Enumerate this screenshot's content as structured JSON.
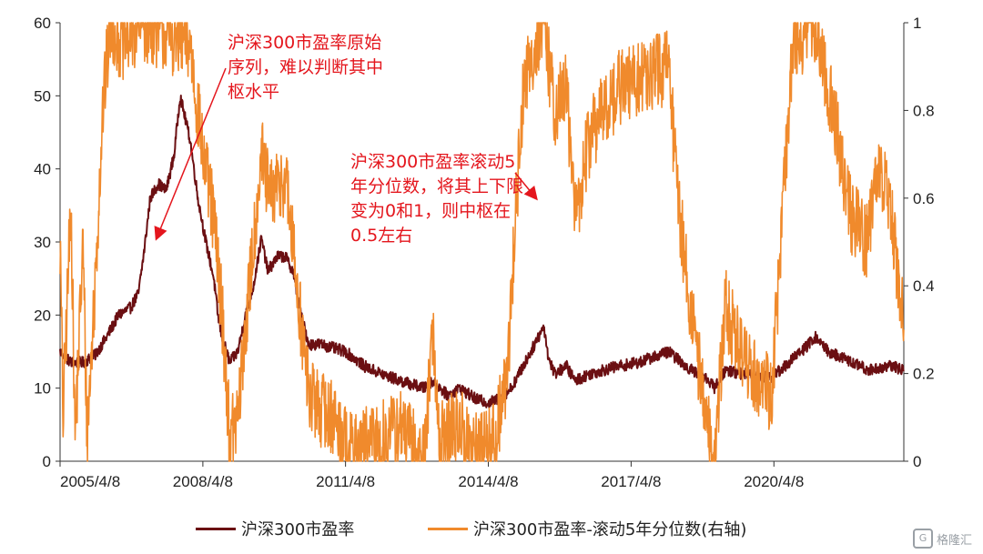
{
  "chart_data": {
    "type": "line",
    "title": "",
    "x_ticks": [
      "2005/4/8",
      "2008/4/8",
      "2011/4/8",
      "2014/4/8",
      "2017/4/8",
      "2020/4/8"
    ],
    "x_range": [
      "2005/4/8",
      "2022/12/31"
    ],
    "y_left": {
      "ticks": [
        0,
        10,
        20,
        30,
        40,
        50,
        60
      ],
      "range": [
        0,
        60
      ]
    },
    "y_right": {
      "ticks": [
        "0",
        "0.2",
        "0.4",
        "0.6",
        "0.8",
        "1"
      ],
      "range": [
        0,
        1
      ]
    },
    "grid": false,
    "legend_position": "bottom",
    "series": [
      {
        "name": "沪深300市盈率",
        "axis": "left",
        "color": "#6b0f12",
        "points": [
          [
            "2005/4/8",
            15
          ],
          [
            "2005/7/1",
            13.5
          ],
          [
            "2005/10/1",
            13.5
          ],
          [
            "2006/1/1",
            14.5
          ],
          [
            "2006/4/1",
            17
          ],
          [
            "2006/7/1",
            20
          ],
          [
            "2006/10/1",
            21
          ],
          [
            "2006/12/1",
            23
          ],
          [
            "2007/1/15",
            29
          ],
          [
            "2007/3/1",
            36
          ],
          [
            "2007/5/1",
            38
          ],
          [
            "2007/7/1",
            37
          ],
          [
            "2007/9/1",
            42
          ],
          [
            "2007/10/16",
            50
          ],
          [
            "2008/1/1",
            44
          ],
          [
            "2008/3/1",
            36
          ],
          [
            "2008/5/1",
            30
          ],
          [
            "2008/7/1",
            25
          ],
          [
            "2008/8/1",
            20
          ],
          [
            "2008/9/1",
            17
          ],
          [
            "2008/11/1",
            13.5
          ],
          [
            "2009/1/1",
            15
          ],
          [
            "2009/3/1",
            20
          ],
          [
            "2009/5/1",
            24
          ],
          [
            "2009/7/1",
            30.5
          ],
          [
            "2009/8/20",
            26
          ],
          [
            "2009/11/1",
            28
          ],
          [
            "2010/1/1",
            28
          ],
          [
            "2010/3/1",
            26
          ],
          [
            "2010/5/1",
            20
          ],
          [
            "2010/7/1",
            16
          ],
          [
            "2010/10/1",
            16
          ],
          [
            "2011/1/1",
            15.5
          ],
          [
            "2011/4/8",
            15
          ],
          [
            "2011/9/1",
            13
          ],
          [
            "2012/1/1",
            12
          ],
          [
            "2012/6/1",
            11
          ],
          [
            "2012/12/1",
            10
          ],
          [
            "2013/2/1",
            11
          ],
          [
            "2013/6/1",
            9
          ],
          [
            "2013/9/1",
            10
          ],
          [
            "2014/1/1",
            8.5
          ],
          [
            "2014/4/8",
            8
          ],
          [
            "2014/7/1",
            8.5
          ],
          [
            "2014/10/1",
            10
          ],
          [
            "2014/12/1",
            12
          ],
          [
            "2015/3/1",
            15
          ],
          [
            "2015/6/8",
            18.5
          ],
          [
            "2015/7/15",
            14
          ],
          [
            "2015/9/1",
            12
          ],
          [
            "2015/12/1",
            13
          ],
          [
            "2016/2/1",
            11
          ],
          [
            "2016/6/1",
            12
          ],
          [
            "2017/1/1",
            13
          ],
          [
            "2017/6/1",
            13.5
          ],
          [
            "2018/1/20",
            15
          ],
          [
            "2018/6/1",
            13
          ],
          [
            "2018/12/1",
            11
          ],
          [
            "2019/1/4",
            10
          ],
          [
            "2019/4/1",
            12.5
          ],
          [
            "2019/8/1",
            12
          ],
          [
            "2020/3/20",
            11.5
          ],
          [
            "2020/7/1",
            13
          ],
          [
            "2021/1/1",
            16
          ],
          [
            "2021/2/18",
            17
          ],
          [
            "2021/6/1",
            15
          ],
          [
            "2021/12/1",
            13.5
          ],
          [
            "2022/4/1",
            12.5
          ],
          [
            "2022/10/1",
            13
          ],
          [
            "2022/12/31",
            12.5
          ]
        ]
      },
      {
        "name": "沪深300市盈率-滚动5年分位数(右轴)",
        "axis": "right",
        "color": "#f08a2c",
        "points": [
          [
            "2005/4/8",
            0.5
          ],
          [
            "2005/5/1",
            0.1
          ],
          [
            "2005/7/1",
            0.6
          ],
          [
            "2005/8/1",
            0.05
          ],
          [
            "2005/10/1",
            0.5
          ],
          [
            "2005/11/1",
            0.05
          ],
          [
            "2006/1/1",
            0.4
          ],
          [
            "2006/3/1",
            0.8
          ],
          [
            "2006/5/1",
            1.0
          ],
          [
            "2006/8/1",
            0.95
          ],
          [
            "2007/1/1",
            1.0
          ],
          [
            "2007/6/1",
            0.98
          ],
          [
            "2008/1/1",
            0.95
          ],
          [
            "2008/4/8",
            0.7
          ],
          [
            "2008/7/1",
            0.55
          ],
          [
            "2008/9/1",
            0.35
          ],
          [
            "2008/11/1",
            0.05
          ],
          [
            "2009/1/1",
            0.1
          ],
          [
            "2009/4/1",
            0.4
          ],
          [
            "2009/7/1",
            0.7
          ],
          [
            "2009/9/1",
            0.6
          ],
          [
            "2010/1/1",
            0.65
          ],
          [
            "2010/4/1",
            0.4
          ],
          [
            "2010/7/1",
            0.15
          ],
          [
            "2010/10/1",
            0.12
          ],
          [
            "2011/1/1",
            0.1
          ],
          [
            "2011/6/1",
            0.02
          ],
          [
            "2012/1/1",
            0.05
          ],
          [
            "2012/6/1",
            0.08
          ],
          [
            "2012/12/1",
            0.0
          ],
          [
            "2013/2/1",
            0.3
          ],
          [
            "2013/4/1",
            0.05
          ],
          [
            "2013/9/1",
            0.08
          ],
          [
            "2014/1/1",
            0.02
          ],
          [
            "2014/6/1",
            0.05
          ],
          [
            "2014/9/1",
            0.2
          ],
          [
            "2014/11/1",
            0.55
          ],
          [
            "2015/1/1",
            0.85
          ],
          [
            "2015/4/1",
            0.95
          ],
          [
            "2015/6/8",
            1.0
          ],
          [
            "2015/9/1",
            0.8
          ],
          [
            "2015/12/1",
            0.85
          ],
          [
            "2016/2/1",
            0.55
          ],
          [
            "2016/6/1",
            0.75
          ],
          [
            "2017/1/1",
            0.85
          ],
          [
            "2017/9/1",
            0.88
          ],
          [
            "2018/1/20",
            0.9
          ],
          [
            "2018/4/1",
            0.6
          ],
          [
            "2018/8/1",
            0.3
          ],
          [
            "2018/12/1",
            0.05
          ],
          [
            "2019/1/4",
            0.0
          ],
          [
            "2019/4/1",
            0.35
          ],
          [
            "2019/8/1",
            0.25
          ],
          [
            "2020/3/20",
            0.15
          ],
          [
            "2020/6/1",
            0.5
          ],
          [
            "2020/9/1",
            0.95
          ],
          [
            "2021/2/18",
            1.0
          ],
          [
            "2021/6/1",
            0.85
          ],
          [
            "2021/9/1",
            0.7
          ],
          [
            "2021/12/1",
            0.55
          ],
          [
            "2022/4/1",
            0.5
          ],
          [
            "2022/7/1",
            0.68
          ],
          [
            "2022/10/1",
            0.55
          ],
          [
            "2022/12/31",
            0.3
          ]
        ]
      }
    ],
    "annotations": [
      {
        "id": "ann-raw",
        "text": "沪深300市盈率原始序列，难以判断其中枢水平"
      },
      {
        "id": "ann-pct",
        "text": "沪深300市盈率滚动5年分位数，将其上下限变为0和1，则中枢在0.5左右"
      }
    ]
  },
  "legend": {
    "items": [
      {
        "label": "沪深300市盈率",
        "color": "#6b0f12"
      },
      {
        "label": "沪深300市盈率-滚动5年分位数(右轴)",
        "color": "#f08a2c"
      }
    ]
  },
  "watermark": {
    "text": "格隆汇",
    "icon": "G"
  }
}
